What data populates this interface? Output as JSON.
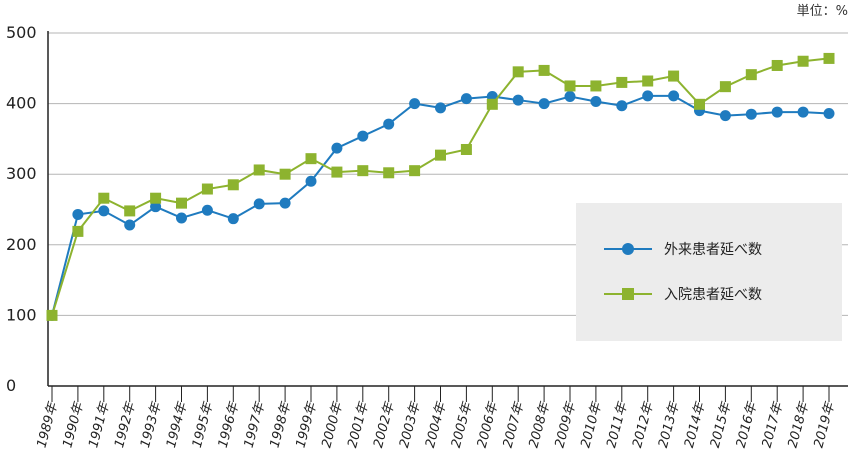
{
  "chart_data": {
    "type": "line",
    "unit_label": "単位：%",
    "categories": [
      "1989年",
      "1990年",
      "1991年",
      "1992年",
      "1993年",
      "1994年",
      "1995年",
      "1996年",
      "1997年",
      "1998年",
      "1999年",
      "2000年",
      "2001年",
      "2002年",
      "2003年",
      "2004年",
      "2005年",
      "2006年",
      "2007年",
      "2008年",
      "2009年",
      "2010年",
      "2011年",
      "2012年",
      "2013年",
      "2014年",
      "2015年",
      "2016年",
      "2017年",
      "2018年",
      "2019年"
    ],
    "ylim": [
      0,
      500
    ],
    "yticks": [
      "0",
      "100",
      "200",
      "300",
      "400",
      "500"
    ],
    "grid": true,
    "legend_position": "right",
    "series": [
      {
        "name": "外来患者延べ数",
        "color": "#1f7bbf",
        "marker": "circle",
        "values": [
          100,
          243,
          248,
          228,
          254,
          238,
          249,
          237,
          258,
          259,
          290,
          337,
          354,
          371,
          400,
          394,
          407,
          410,
          405,
          400,
          410,
          403,
          397,
          411,
          411,
          390,
          383,
          385,
          388,
          388,
          386
        ]
      },
      {
        "name": "入院患者延べ数",
        "color": "#8db32f",
        "marker": "square",
        "values": [
          100,
          219,
          266,
          248,
          266,
          259,
          279,
          285,
          306,
          300,
          322,
          303,
          305,
          302,
          305,
          327,
          335,
          399,
          445,
          447,
          425,
          425,
          430,
          432,
          439,
          399,
          424,
          441,
          454,
          460,
          464
        ]
      }
    ]
  }
}
